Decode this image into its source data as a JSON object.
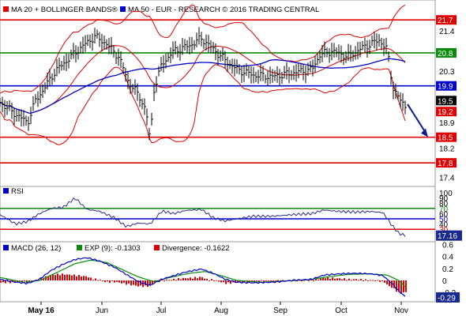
{
  "header": {
    "legend": [
      {
        "label": "MA 20 + BOLLINGER BANDS®",
        "color": "#e00000"
      },
      {
        "label": "MA 50 - EUR - RESEARCH © 2016 TRADING CENTRAL",
        "color": "#0000cc"
      }
    ]
  },
  "chart_data": [
    {
      "type": "line",
      "name": "price",
      "ylim": [
        17.2,
        22.2
      ],
      "y_ticks": [
        "21.4",
        "20.8",
        "20.3",
        "19.9",
        "19.5",
        "19.2",
        "18.9",
        "18.5",
        "18.2",
        "17.8",
        "17.4"
      ],
      "x_ticks": [
        "May 16",
        "Jun",
        "Jul",
        "Aug",
        "Sep",
        "Oct",
        "Nov"
      ],
      "horizontal_levels": [
        {
          "value": 21.7,
          "label": "21.7",
          "color": "#e00000"
        },
        {
          "value": 20.8,
          "label": "20.8",
          "color": "#0a8a0a"
        },
        {
          "value": 19.9,
          "label": "19.9",
          "color": "#0000cc"
        },
        {
          "value": 19.5,
          "label": "19.5",
          "color": "#000000"
        },
        {
          "value": 19.2,
          "label": "19.2",
          "color": "#e00000"
        },
        {
          "value": 18.5,
          "label": "18.5",
          "color": "#e00000"
        },
        {
          "value": 17.8,
          "label": "17.8",
          "color": "#e00000"
        }
      ],
      "forecast_arrow": {
        "from": 19.4,
        "to": 18.5
      },
      "series": [
        {
          "name": "MA 20 + BOLLINGER BANDS®",
          "color": "#e00000"
        },
        {
          "name": "MA 50",
          "color": "#0000cc"
        }
      ],
      "price_anchors": [
        [
          0,
          19.45
        ],
        [
          15,
          19.2
        ],
        [
          35,
          18.9
        ],
        [
          45,
          19.5
        ],
        [
          55,
          19.8
        ],
        [
          70,
          20.3
        ],
        [
          85,
          20.6
        ],
        [
          100,
          20.9
        ],
        [
          120,
          21.25
        ],
        [
          135,
          21.05
        ],
        [
          150,
          20.7
        ],
        [
          163,
          20.0
        ],
        [
          177,
          19.6
        ],
        [
          185,
          19.2
        ],
        [
          190,
          18.4
        ],
        [
          195,
          19.8
        ],
        [
          205,
          20.5
        ],
        [
          220,
          20.85
        ],
        [
          240,
          21.0
        ],
        [
          255,
          21.2
        ],
        [
          270,
          20.9
        ],
        [
          285,
          20.6
        ],
        [
          300,
          20.35
        ],
        [
          320,
          20.2
        ],
        [
          345,
          20.15
        ],
        [
          370,
          20.25
        ],
        [
          395,
          20.35
        ],
        [
          405,
          20.75
        ],
        [
          420,
          20.85
        ],
        [
          440,
          20.7
        ],
        [
          460,
          20.95
        ],
        [
          480,
          21.15
        ],
        [
          490,
          20.9
        ],
        [
          497,
          19.9
        ],
        [
          505,
          19.55
        ],
        [
          515,
          19.3
        ]
      ]
    },
    {
      "type": "line",
      "name": "RSI",
      "label": "RSI",
      "ylim": [
        0,
        100
      ],
      "y_ticks": [
        "100",
        "90",
        "80",
        "70",
        "60",
        "50",
        "40",
        "30"
      ],
      "levels": [
        {
          "value": 70,
          "label": "70",
          "color": "#0a8a0a"
        },
        {
          "value": 50,
          "label": "50",
          "color": "#0000cc"
        },
        {
          "value": 30,
          "label": "30",
          "color": "#e00000"
        }
      ],
      "last_value": "17.16",
      "anchors": [
        [
          0,
          58
        ],
        [
          20,
          40
        ],
        [
          35,
          45
        ],
        [
          50,
          60
        ],
        [
          65,
          70
        ],
        [
          80,
          72
        ],
        [
          95,
          90
        ],
        [
          110,
          68
        ],
        [
          125,
          65
        ],
        [
          145,
          52
        ],
        [
          160,
          35
        ],
        [
          175,
          42
        ],
        [
          190,
          40
        ],
        [
          205,
          65
        ],
        [
          220,
          60
        ],
        [
          235,
          66
        ],
        [
          255,
          68
        ],
        [
          270,
          52
        ],
        [
          285,
          46
        ],
        [
          300,
          50
        ],
        [
          320,
          55
        ],
        [
          345,
          55
        ],
        [
          370,
          58
        ],
        [
          395,
          60
        ],
        [
          410,
          67
        ],
        [
          430,
          64
        ],
        [
          450,
          63
        ],
        [
          470,
          64
        ],
        [
          485,
          62
        ],
        [
          495,
          40
        ],
        [
          505,
          22
        ],
        [
          515,
          17
        ]
      ]
    },
    {
      "type": "line",
      "name": "MACD",
      "ylim": [
        -0.33,
        0.62
      ],
      "y_ticks": [
        "0.6",
        "0.4",
        "0.2",
        "0",
        "-0.2"
      ],
      "legend": [
        {
          "label": "MACD (26, 12)",
          "color": "#0000cc"
        },
        {
          "label": "EXP (9): -0.1303",
          "color": "#0a8a0a"
        },
        {
          "label": "Divergence: -0.1622",
          "color": "#e00000"
        }
      ],
      "last_value": "-0.29",
      "macd_anchors": [
        [
          0,
          0.02
        ],
        [
          20,
          -0.03
        ],
        [
          35,
          -0.05
        ],
        [
          50,
          0.02
        ],
        [
          65,
          0.17
        ],
        [
          80,
          0.27
        ],
        [
          95,
          0.35
        ],
        [
          110,
          0.38
        ],
        [
          125,
          0.33
        ],
        [
          145,
          0.22
        ],
        [
          160,
          0.1
        ],
        [
          175,
          -0.02
        ],
        [
          190,
          -0.08
        ],
        [
          205,
          0.02
        ],
        [
          220,
          0.08
        ],
        [
          235,
          0.14
        ],
        [
          255,
          0.19
        ],
        [
          270,
          0.12
        ],
        [
          285,
          0.02
        ],
        [
          300,
          -0.03
        ],
        [
          320,
          -0.04
        ],
        [
          345,
          -0.03
        ],
        [
          370,
          0.0
        ],
        [
          395,
          0.02
        ],
        [
          410,
          0.09
        ],
        [
          430,
          0.11
        ],
        [
          450,
          0.12
        ],
        [
          470,
          0.11
        ],
        [
          485,
          0.08
        ],
        [
          497,
          -0.06
        ],
        [
          505,
          -0.18
        ],
        [
          515,
          -0.29
        ]
      ],
      "signal_anchors": [
        [
          0,
          0.05
        ],
        [
          30,
          -0.03
        ],
        [
          50,
          0.0
        ],
        [
          70,
          0.12
        ],
        [
          95,
          0.28
        ],
        [
          115,
          0.34
        ],
        [
          135,
          0.3
        ],
        [
          155,
          0.18
        ],
        [
          175,
          0.06
        ],
        [
          195,
          -0.02
        ],
        [
          215,
          0.05
        ],
        [
          240,
          0.12
        ],
        [
          260,
          0.15
        ],
        [
          280,
          0.08
        ],
        [
          300,
          0.0
        ],
        [
          330,
          -0.03
        ],
        [
          360,
          -0.01
        ],
        [
          390,
          0.01
        ],
        [
          415,
          0.06
        ],
        [
          440,
          0.1
        ],
        [
          465,
          0.11
        ],
        [
          490,
          0.09
        ],
        [
          505,
          0.0
        ],
        [
          515,
          -0.13
        ]
      ]
    }
  ]
}
